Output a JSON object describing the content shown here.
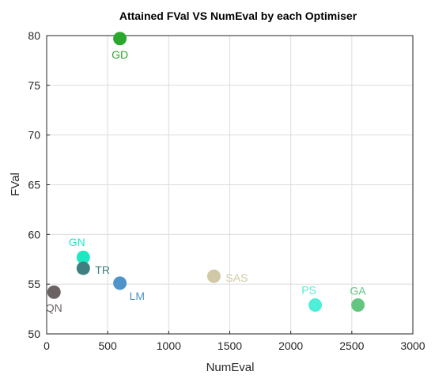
{
  "chart_data": {
    "type": "scatter",
    "title": "Attained FVal VS NumEval by each Optimiser",
    "xlabel": "NumEval",
    "ylabel": "FVal",
    "xlim": [
      0,
      3000
    ],
    "ylim": [
      50,
      80
    ],
    "xticks": [
      0,
      500,
      1000,
      1500,
      2000,
      2500,
      3000
    ],
    "yticks": [
      50,
      55,
      60,
      65,
      70,
      75,
      80
    ],
    "grid": true,
    "points": [
      {
        "label": "GD",
        "x": 600,
        "y": 79.7,
        "color": "#2aa82e",
        "label_pos": "below"
      },
      {
        "label": "GN",
        "x": 300,
        "y": 57.7,
        "color": "#1ee8c4",
        "label_pos": "above-left"
      },
      {
        "label": "TR",
        "x": 300,
        "y": 56.6,
        "color": "#3f7f7f",
        "label_pos": "right"
      },
      {
        "label": "QN",
        "x": 60,
        "y": 54.2,
        "color": "#6b6264",
        "label_pos": "below"
      },
      {
        "label": "LM",
        "x": 600,
        "y": 55.1,
        "color": "#4f93c8",
        "label_pos": "below-right"
      },
      {
        "label": "SAS",
        "x": 1370,
        "y": 55.8,
        "color": "#d1c9a6",
        "label_pos": "right"
      },
      {
        "label": "PS",
        "x": 2200,
        "y": 52.9,
        "color": "#4eeed8",
        "label_pos": "above-left"
      },
      {
        "label": "GA",
        "x": 2550,
        "y": 52.9,
        "color": "#62c680",
        "label_pos": "above"
      }
    ]
  }
}
